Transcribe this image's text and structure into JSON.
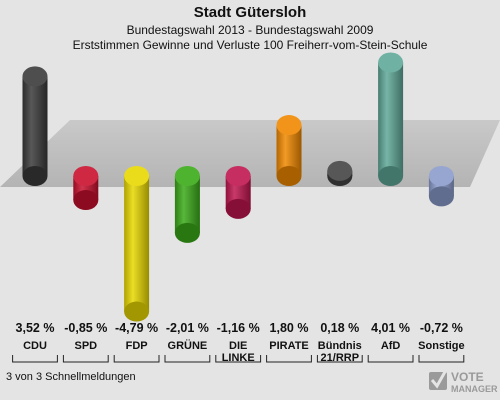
{
  "header": {
    "title": "Stadt Gütersloh",
    "subtitle": "Bundestagswahl 2013 - Bundestagswahl 2009",
    "description": "Erststimmen Gewinne und Verluste 100 Freiherr-vom-Stein-Schule"
  },
  "footer": {
    "text": "3 von 3 Schnellmeldungen"
  },
  "watermark": {
    "line1": "VOTE",
    "line2": "MANAGER"
  },
  "chart_data": {
    "type": "bar",
    "title": "Stadt Gütersloh",
    "categories": [
      "CDU",
      "SPD",
      "FDP",
      "GRÜNE",
      "DIE LINKE",
      "PIRATE",
      "Bündnis 21/RRP",
      "AfD",
      "Sonstige"
    ],
    "category_lines": [
      [
        "CDU"
      ],
      [
        "SPD"
      ],
      [
        "FDP"
      ],
      [
        "GRÜNE"
      ],
      [
        "DIE",
        "LINKE"
      ],
      [
        "PIRATE"
      ],
      [
        "Bündnis",
        "21/RRP"
      ],
      [
        "AfD"
      ],
      [
        "Sonstige"
      ]
    ],
    "values": [
      3.52,
      -0.85,
      -4.79,
      -2.01,
      -1.16,
      1.8,
      0.18,
      4.01,
      -0.72
    ],
    "value_labels": [
      "3,52 %",
      "-0,85 %",
      "-4,79 %",
      "-2,01 %",
      "-1,16 %",
      "1,80 %",
      "0,18 %",
      "4,01 %",
      "-0,72 %"
    ],
    "colors": [
      "#3a3a3a",
      "#c8102e",
      "#e8d800",
      "#3aaa18",
      "#c0164e",
      "#f08800",
      "#444444",
      "#5fa898",
      "#8a9ccc"
    ],
    "unit": "%"
  }
}
